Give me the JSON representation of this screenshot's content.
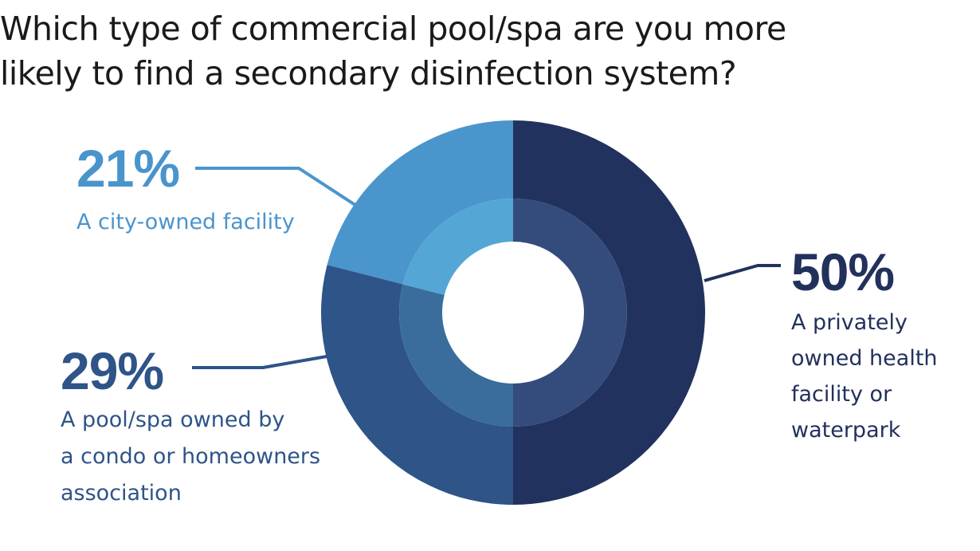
{
  "title": {
    "line1": "Which type of commercial pool/spa are you more",
    "line2": "likely to find a secondary disinfection system?"
  },
  "chart_data": {
    "type": "pie",
    "title": "Which type of commercial pool/spa are you more likely to find a secondary disinfection system?",
    "unit": "%",
    "slices": [
      {
        "label": "A privately owned health facility or waterpark",
        "value": 50,
        "value_label": "50%",
        "label_lines": [
          "A privately",
          "owned health",
          "facility or",
          "waterpark"
        ],
        "color": "#22325e",
        "inner_color": "#344c7c"
      },
      {
        "label": "A pool/spa owned by a condo or homeowners association",
        "value": 29,
        "value_label": "29%",
        "label_lines": [
          "A pool/spa owned by",
          "a condo or homeowners",
          "association"
        ],
        "color": "#2e5488",
        "inner_color": "#3a6d9b"
      },
      {
        "label": "A city-owned facility",
        "value": 21,
        "value_label": "21%",
        "label_lines": [
          "A city-owned facility"
        ],
        "color": "#4b95cd",
        "inner_color": "#54a6d4"
      }
    ],
    "legend": "callouts"
  }
}
